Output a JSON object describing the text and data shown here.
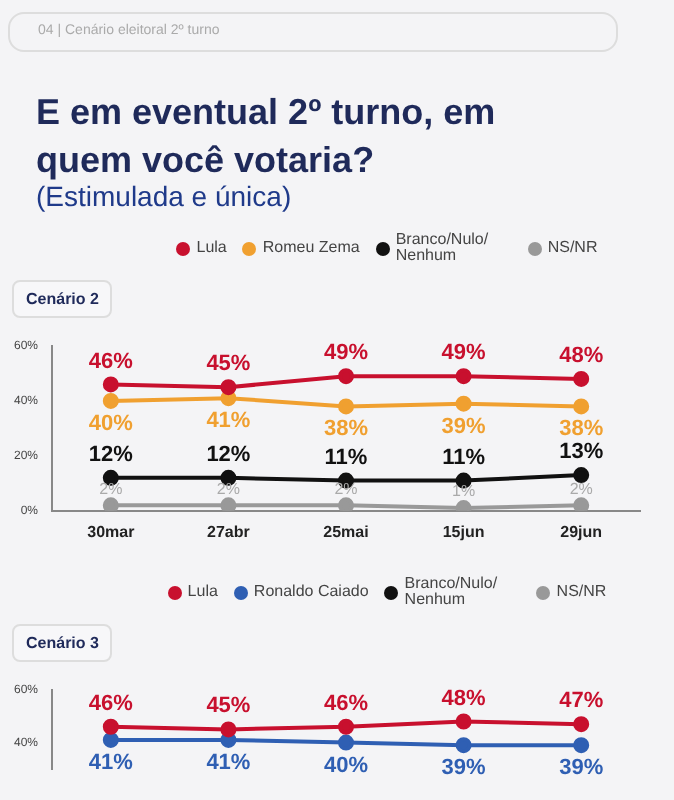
{
  "chart_data": [
    {
      "type": "line",
      "title": "E em eventual 2º turno, em quem você votaria?",
      "subtitle": "(Estimulada e única)",
      "annotations": [
        "04 | Cenário eleitoral 2º turno",
        "Cenário 2"
      ],
      "categories": [
        "30mar",
        "27abr",
        "25mai",
        "15jun",
        "29jun"
      ],
      "series": [
        {
          "name": "Lula",
          "color": "#c8102e",
          "values": [
            46,
            45,
            49,
            49,
            48
          ],
          "value_labels": [
            "46%",
            "45%",
            "49%",
            "49%",
            "48%"
          ]
        },
        {
          "name": "Romeu Zema",
          "color": "#f0a030",
          "values": [
            40,
            41,
            38,
            39,
            38
          ],
          "value_labels": [
            "40%",
            "41%",
            "38%",
            "39%",
            "38%"
          ]
        },
        {
          "name": "Branco/Nulo/ Nenhum",
          "color": "#111111",
          "values": [
            12,
            12,
            11,
            11,
            13
          ],
          "value_labels": [
            "12%",
            "12%",
            "11%",
            "11%",
            "13%"
          ]
        },
        {
          "name": "NS/NR",
          "color": "#999999",
          "values": [
            2,
            2,
            2,
            1,
            2
          ],
          "value_labels": [
            "2%",
            "2%",
            "2%",
            "1%",
            "2%"
          ]
        }
      ],
      "ylim": [
        0,
        60
      ],
      "yticks": [
        {
          "value": 0,
          "label": "0%"
        },
        {
          "value": 20,
          "label": "20%"
        },
        {
          "value": 40,
          "label": "40%"
        },
        {
          "value": 60,
          "label": "60%"
        }
      ],
      "grid": false,
      "legend": "top",
      "marker": "circle"
    },
    {
      "type": "line",
      "annotations": [
        "Cenário 3"
      ],
      "categories": [
        null,
        null,
        null,
        null,
        null
      ],
      "series": [
        {
          "name": "Lula",
          "color": "#c8102e",
          "values": [
            46,
            45,
            46,
            48,
            47
          ],
          "value_labels": [
            "46%",
            "45%",
            "46%",
            "48%",
            "47%"
          ]
        },
        {
          "name": "Ronaldo Caiado",
          "color": "#2f5fb3",
          "values": [
            41,
            41,
            40,
            39,
            39
          ],
          "value_labels": [
            "41%",
            "41%",
            "40%",
            "39%",
            "39%"
          ]
        },
        {
          "name": "Branco/Nulo/ Nenhum",
          "color": "#111111",
          "values": [
            null,
            null,
            null,
            null,
            null
          ]
        },
        {
          "name": "NS/NR",
          "color": "#999999",
          "values": [
            null,
            null,
            null,
            null,
            null
          ]
        }
      ],
      "ylim": [
        30,
        60
      ],
      "yticks": [
        {
          "value": 40,
          "label": "40%"
        },
        {
          "value": 60,
          "label": "60%"
        }
      ],
      "grid": false,
      "legend": "top",
      "marker": "circle"
    }
  ]
}
